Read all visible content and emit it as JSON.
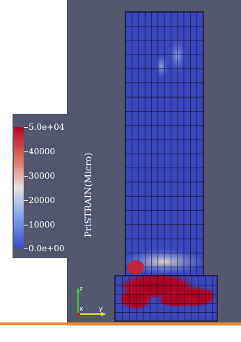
{
  "colors": {
    "background": "#52576e",
    "accent_bar": "#f08a2c"
  },
  "legend": {
    "title": "PriSTRAIN(Micro)",
    "ticks": [
      "5.0e+04",
      "40000",
      "30000",
      "20000",
      "10000",
      "0.0e+00"
    ],
    "min": 0,
    "max": 50000,
    "colormap": [
      "#3b4cc0",
      "#7aa0f0",
      "#e7e2df",
      "#dd6a5a",
      "#b40426"
    ]
  },
  "axes_widget": {
    "z": "z",
    "x": "x",
    "y": "y"
  }
}
